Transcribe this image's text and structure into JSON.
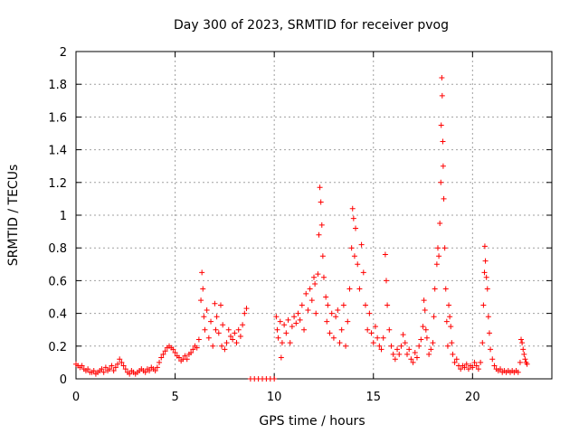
{
  "chart_data": {
    "type": "scatter",
    "title": "Day 300 of 2023, SRMTID for receiver pvog",
    "xlabel": "GPS time / hours",
    "ylabel": "SRMTID / TECUs",
    "xlim": [
      0,
      24
    ],
    "ylim": [
      0,
      2
    ],
    "x_ticks": [
      0,
      5,
      10,
      15,
      20
    ],
    "x_tick_labels": [
      "0",
      "5",
      "10",
      "15",
      "20"
    ],
    "y_ticks": [
      0,
      0.2,
      0.4,
      0.6,
      0.8,
      1,
      1.2,
      1.4,
      1.6,
      1.8,
      2
    ],
    "y_tick_labels": [
      "0",
      "0.2",
      "0.4",
      "0.6",
      "0.8",
      "1",
      "1.2",
      "1.4",
      "1.6",
      "1.8",
      "2"
    ],
    "grid": true,
    "marker": "+",
    "color": "#ff0000",
    "series": [
      {
        "name": "SRMTID",
        "points": [
          [
            0.0,
            0.09
          ],
          [
            0.1,
            0.08
          ],
          [
            0.2,
            0.07
          ],
          [
            0.3,
            0.08
          ],
          [
            0.4,
            0.06
          ],
          [
            0.5,
            0.05
          ],
          [
            0.6,
            0.06
          ],
          [
            0.7,
            0.04
          ],
          [
            0.8,
            0.04
          ],
          [
            0.9,
            0.05
          ],
          [
            1.0,
            0.03
          ],
          [
            1.1,
            0.04
          ],
          [
            1.2,
            0.05
          ],
          [
            1.3,
            0.06
          ],
          [
            1.4,
            0.04
          ],
          [
            1.5,
            0.07
          ],
          [
            1.6,
            0.05
          ],
          [
            1.7,
            0.06
          ],
          [
            1.8,
            0.08
          ],
          [
            1.9,
            0.05
          ],
          [
            2.0,
            0.07
          ],
          [
            2.1,
            0.09
          ],
          [
            2.2,
            0.12
          ],
          [
            2.3,
            0.1
          ],
          [
            2.4,
            0.08
          ],
          [
            2.5,
            0.06
          ],
          [
            2.6,
            0.04
          ],
          [
            2.7,
            0.03
          ],
          [
            2.8,
            0.05
          ],
          [
            2.9,
            0.04
          ],
          [
            3.0,
            0.03
          ],
          [
            3.1,
            0.04
          ],
          [
            3.2,
            0.05
          ],
          [
            3.3,
            0.06
          ],
          [
            3.4,
            0.05
          ],
          [
            3.5,
            0.04
          ],
          [
            3.6,
            0.06
          ],
          [
            3.7,
            0.05
          ],
          [
            3.8,
            0.07
          ],
          [
            3.9,
            0.06
          ],
          [
            4.0,
            0.05
          ],
          [
            4.1,
            0.07
          ],
          [
            4.2,
            0.1
          ],
          [
            4.3,
            0.13
          ],
          [
            4.4,
            0.15
          ],
          [
            4.5,
            0.17
          ],
          [
            4.6,
            0.19
          ],
          [
            4.7,
            0.2
          ],
          [
            4.8,
            0.19
          ],
          [
            4.9,
            0.18
          ],
          [
            5.0,
            0.16
          ],
          [
            5.1,
            0.14
          ],
          [
            5.2,
            0.13
          ],
          [
            5.3,
            0.11
          ],
          [
            5.4,
            0.12
          ],
          [
            5.5,
            0.14
          ],
          [
            5.6,
            0.12
          ],
          [
            5.7,
            0.15
          ],
          [
            5.8,
            0.16
          ],
          [
            5.9,
            0.18
          ],
          [
            6.0,
            0.2
          ],
          [
            6.1,
            0.19
          ],
          [
            6.2,
            0.24
          ],
          [
            6.3,
            0.48
          ],
          [
            6.35,
            0.65
          ],
          [
            6.4,
            0.55
          ],
          [
            6.45,
            0.38
          ],
          [
            6.5,
            0.3
          ],
          [
            6.6,
            0.42
          ],
          [
            6.7,
            0.25
          ],
          [
            6.8,
            0.35
          ],
          [
            6.9,
            0.2
          ],
          [
            7.0,
            0.46
          ],
          [
            7.05,
            0.3
          ],
          [
            7.1,
            0.38
          ],
          [
            7.2,
            0.28
          ],
          [
            7.3,
            0.45
          ],
          [
            7.35,
            0.2
          ],
          [
            7.4,
            0.33
          ],
          [
            7.5,
            0.18
          ],
          [
            7.6,
            0.22
          ],
          [
            7.7,
            0.3
          ],
          [
            7.8,
            0.26
          ],
          [
            7.9,
            0.24
          ],
          [
            8.0,
            0.28
          ],
          [
            8.1,
            0.22
          ],
          [
            8.2,
            0.3
          ],
          [
            8.3,
            0.26
          ],
          [
            8.4,
            0.33
          ],
          [
            8.5,
            0.4
          ],
          [
            8.6,
            0.43
          ],
          [
            8.8,
            0.0
          ],
          [
            9.0,
            0.0
          ],
          [
            9.2,
            0.0
          ],
          [
            9.4,
            0.0
          ],
          [
            9.6,
            0.0
          ],
          [
            9.8,
            0.0
          ],
          [
            10.0,
            0.0
          ],
          [
            10.1,
            0.38
          ],
          [
            10.15,
            0.3
          ],
          [
            10.2,
            0.25
          ],
          [
            10.3,
            0.35
          ],
          [
            10.35,
            0.13
          ],
          [
            10.4,
            0.22
          ],
          [
            10.5,
            0.33
          ],
          [
            10.6,
            0.28
          ],
          [
            10.7,
            0.36
          ],
          [
            10.8,
            0.22
          ],
          [
            10.9,
            0.32
          ],
          [
            11.0,
            0.38
          ],
          [
            11.1,
            0.34
          ],
          [
            11.2,
            0.4
          ],
          [
            11.3,
            0.36
          ],
          [
            11.4,
            0.45
          ],
          [
            11.5,
            0.3
          ],
          [
            11.6,
            0.52
          ],
          [
            11.7,
            0.42
          ],
          [
            11.8,
            0.55
          ],
          [
            11.9,
            0.48
          ],
          [
            12.0,
            0.62
          ],
          [
            12.05,
            0.58
          ],
          [
            12.1,
            0.4
          ],
          [
            12.2,
            0.64
          ],
          [
            12.25,
            0.88
          ],
          [
            12.3,
            1.17
          ],
          [
            12.35,
            1.08
          ],
          [
            12.4,
            0.94
          ],
          [
            12.45,
            0.75
          ],
          [
            12.5,
            0.62
          ],
          [
            12.6,
            0.5
          ],
          [
            12.65,
            0.35
          ],
          [
            12.7,
            0.45
          ],
          [
            12.8,
            0.28
          ],
          [
            12.9,
            0.4
          ],
          [
            13.0,
            0.25
          ],
          [
            13.1,
            0.38
          ],
          [
            13.2,
            0.42
          ],
          [
            13.3,
            0.22
          ],
          [
            13.4,
            0.3
          ],
          [
            13.5,
            0.45
          ],
          [
            13.6,
            0.2
          ],
          [
            13.7,
            0.35
          ],
          [
            13.8,
            0.55
          ],
          [
            13.9,
            0.8
          ],
          [
            13.95,
            1.04
          ],
          [
            14.0,
            0.98
          ],
          [
            14.05,
            0.75
          ],
          [
            14.1,
            0.92
          ],
          [
            14.2,
            0.7
          ],
          [
            14.3,
            0.55
          ],
          [
            14.4,
            0.82
          ],
          [
            14.5,
            0.65
          ],
          [
            14.6,
            0.45
          ],
          [
            14.7,
            0.3
          ],
          [
            14.8,
            0.4
          ],
          [
            14.9,
            0.28
          ],
          [
            15.0,
            0.22
          ],
          [
            15.1,
            0.32
          ],
          [
            15.2,
            0.25
          ],
          [
            15.3,
            0.2
          ],
          [
            15.4,
            0.18
          ],
          [
            15.5,
            0.25
          ],
          [
            15.6,
            0.76
          ],
          [
            15.65,
            0.6
          ],
          [
            15.7,
            0.45
          ],
          [
            15.8,
            0.3
          ],
          [
            15.9,
            0.2
          ],
          [
            16.0,
            0.15
          ],
          [
            16.1,
            0.12
          ],
          [
            16.2,
            0.18
          ],
          [
            16.3,
            0.15
          ],
          [
            16.4,
            0.2
          ],
          [
            16.5,
            0.27
          ],
          [
            16.6,
            0.22
          ],
          [
            16.7,
            0.15
          ],
          [
            16.8,
            0.18
          ],
          [
            16.9,
            0.12
          ],
          [
            17.0,
            0.1
          ],
          [
            17.1,
            0.16
          ],
          [
            17.2,
            0.13
          ],
          [
            17.3,
            0.2
          ],
          [
            17.4,
            0.24
          ],
          [
            17.5,
            0.32
          ],
          [
            17.55,
            0.48
          ],
          [
            17.6,
            0.42
          ],
          [
            17.65,
            0.3
          ],
          [
            17.7,
            0.25
          ],
          [
            17.8,
            0.15
          ],
          [
            17.9,
            0.18
          ],
          [
            18.0,
            0.22
          ],
          [
            18.05,
            0.38
          ],
          [
            18.1,
            0.55
          ],
          [
            18.2,
            0.7
          ],
          [
            18.25,
            0.8
          ],
          [
            18.3,
            0.75
          ],
          [
            18.35,
            0.95
          ],
          [
            18.4,
            1.2
          ],
          [
            18.42,
            1.55
          ],
          [
            18.45,
            1.84
          ],
          [
            18.47,
            1.73
          ],
          [
            18.5,
            1.45
          ],
          [
            18.52,
            1.3
          ],
          [
            18.55,
            1.1
          ],
          [
            18.6,
            0.8
          ],
          [
            18.65,
            0.55
          ],
          [
            18.7,
            0.35
          ],
          [
            18.75,
            0.2
          ],
          [
            18.8,
            0.45
          ],
          [
            18.85,
            0.38
          ],
          [
            18.9,
            0.32
          ],
          [
            18.95,
            0.22
          ],
          [
            19.0,
            0.15
          ],
          [
            19.1,
            0.1
          ],
          [
            19.2,
            0.12
          ],
          [
            19.3,
            0.08
          ],
          [
            19.4,
            0.06
          ],
          [
            19.5,
            0.08
          ],
          [
            19.6,
            0.07
          ],
          [
            19.7,
            0.09
          ],
          [
            19.8,
            0.06
          ],
          [
            19.9,
            0.08
          ],
          [
            20.0,
            0.07
          ],
          [
            20.1,
            0.1
          ],
          [
            20.2,
            0.08
          ],
          [
            20.3,
            0.06
          ],
          [
            20.4,
            0.1
          ],
          [
            20.5,
            0.22
          ],
          [
            20.55,
            0.45
          ],
          [
            20.6,
            0.65
          ],
          [
            20.62,
            0.81
          ],
          [
            20.65,
            0.72
          ],
          [
            20.7,
            0.62
          ],
          [
            20.75,
            0.55
          ],
          [
            20.8,
            0.38
          ],
          [
            20.85,
            0.28
          ],
          [
            20.9,
            0.18
          ],
          [
            21.0,
            0.12
          ],
          [
            21.1,
            0.08
          ],
          [
            21.2,
            0.06
          ],
          [
            21.3,
            0.05
          ],
          [
            21.4,
            0.06
          ],
          [
            21.5,
            0.04
          ],
          [
            21.6,
            0.05
          ],
          [
            21.7,
            0.04
          ],
          [
            21.8,
            0.05
          ],
          [
            21.9,
            0.04
          ],
          [
            22.0,
            0.05
          ],
          [
            22.1,
            0.04
          ],
          [
            22.2,
            0.05
          ],
          [
            22.3,
            0.04
          ],
          [
            22.4,
            0.1
          ],
          [
            22.45,
            0.24
          ],
          [
            22.5,
            0.22
          ],
          [
            22.55,
            0.18
          ],
          [
            22.6,
            0.15
          ],
          [
            22.65,
            0.12
          ],
          [
            22.7,
            0.1
          ],
          [
            22.75,
            0.09
          ]
        ]
      }
    ]
  }
}
